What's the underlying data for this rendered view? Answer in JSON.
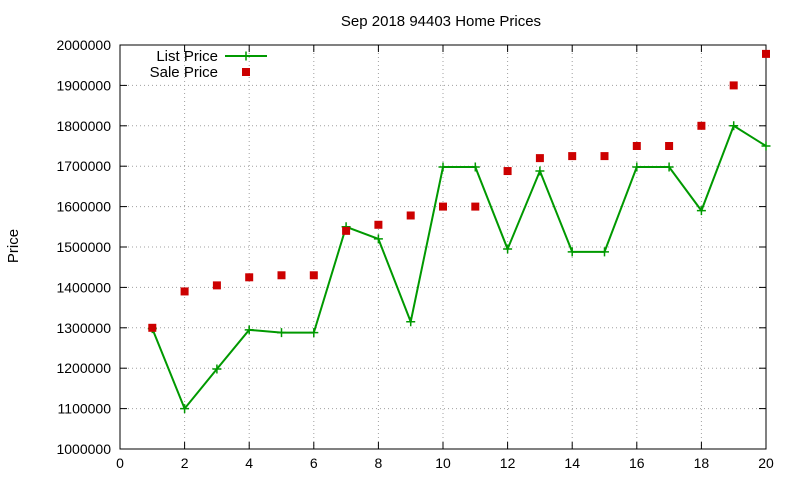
{
  "chart_data": {
    "type": "line",
    "title": "Sep 2018 94403 Home Prices",
    "xlabel": "",
    "ylabel": "Price",
    "xlim": [
      0,
      20
    ],
    "ylim": [
      1000000,
      2000000
    ],
    "x_ticks": [
      0,
      2,
      4,
      6,
      8,
      10,
      12,
      14,
      16,
      18,
      20
    ],
    "y_ticks": [
      1000000,
      1100000,
      1200000,
      1300000,
      1400000,
      1500000,
      1600000,
      1700000,
      1800000,
      1900000,
      2000000
    ],
    "grid": true,
    "legend_position": "top-left",
    "x": [
      1,
      2,
      3,
      4,
      5,
      6,
      7,
      8,
      9,
      10,
      11,
      12,
      13,
      14,
      15,
      16,
      17,
      18,
      19,
      20
    ],
    "series": [
      {
        "name": "List Price",
        "style": "line-with-plus-markers",
        "color": "#009900",
        "values": [
          1298000,
          1100000,
          1198000,
          1295000,
          1288000,
          1288000,
          1550000,
          1520000,
          1315000,
          1698000,
          1698000,
          1495000,
          1688000,
          1488000,
          1488000,
          1698000,
          1698000,
          1590000,
          1800000,
          1750000
        ]
      },
      {
        "name": "Sale Price",
        "style": "square-markers",
        "color": "#cc0000",
        "values": [
          1300000,
          1390000,
          1405000,
          1425000,
          1430000,
          1430000,
          1540000,
          1555000,
          1578000,
          1600000,
          1600000,
          1688000,
          1720000,
          1725000,
          1725000,
          1750000,
          1750000,
          1800000,
          1900000,
          1978000
        ]
      }
    ]
  }
}
